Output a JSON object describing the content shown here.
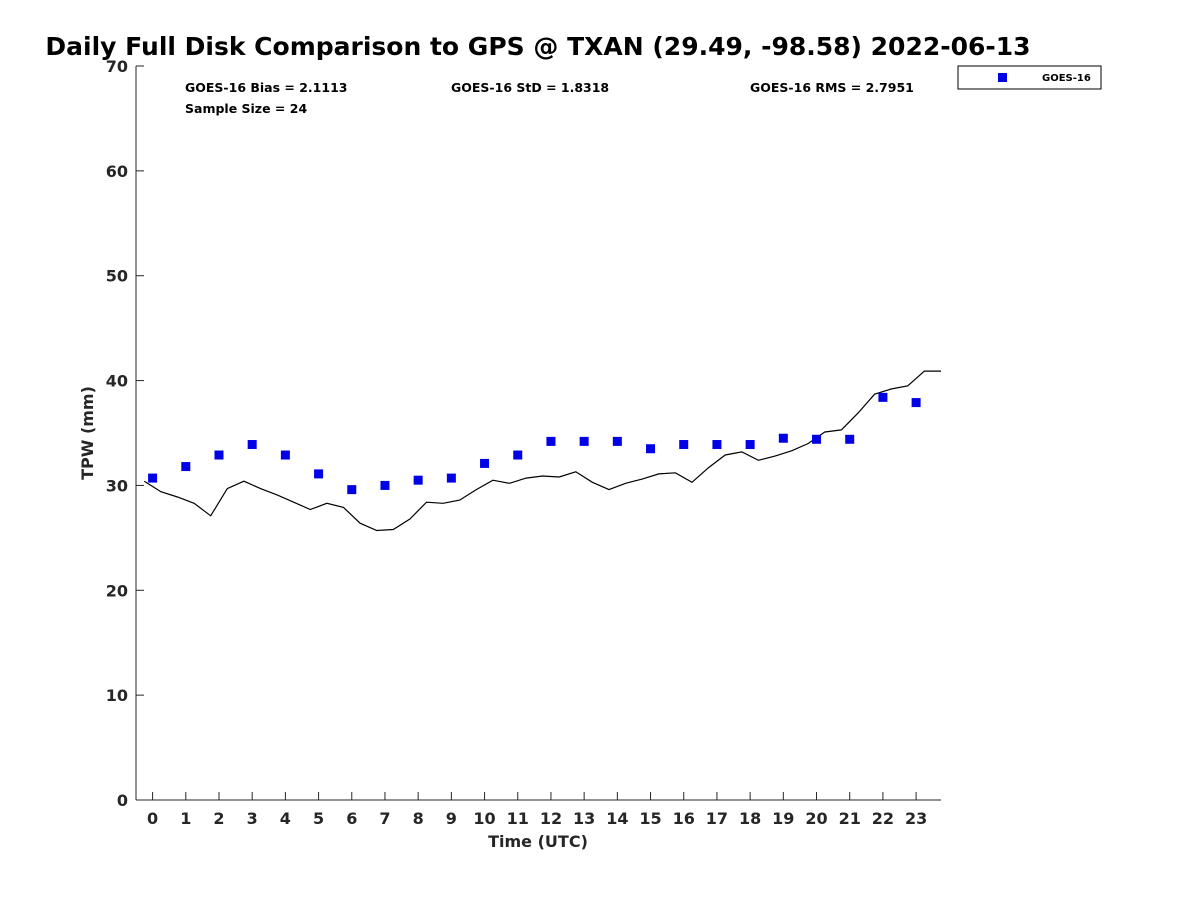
{
  "chart_data": {
    "type": "scatter",
    "title": "Daily Full Disk Comparison to GPS @ TXAN (29.49, -98.58) 2022-06-13",
    "xlabel": "Time (UTC)",
    "ylabel": "TPW (mm)",
    "xlim": [
      -0.5,
      23.75
    ],
    "ylim": [
      0,
      70
    ],
    "x_ticks": [
      0,
      1,
      2,
      3,
      4,
      5,
      6,
      7,
      8,
      9,
      10,
      11,
      12,
      13,
      14,
      15,
      16,
      17,
      18,
      19,
      20,
      21,
      22,
      23
    ],
    "x_tick_labels": [
      "0",
      "1",
      "2",
      "3",
      "4",
      "5",
      "6",
      "7",
      "8",
      "9",
      "10",
      "11",
      "12",
      "13",
      "14",
      "15",
      "16",
      "17",
      "18",
      "19",
      "20",
      "21",
      "22",
      "23"
    ],
    "y_ticks": [
      0,
      10,
      20,
      30,
      40,
      50,
      60,
      70
    ],
    "y_tick_labels": [
      "0",
      "10",
      "20",
      "30",
      "40",
      "50",
      "60",
      "70"
    ],
    "grid": false,
    "legend": {
      "placement": "outside-top-right",
      "entries": [
        "GOES-16"
      ]
    },
    "series": [
      {
        "name": "GOES-16",
        "kind": "markers",
        "marker": "square",
        "color": "#0000e6",
        "x": [
          0,
          1,
          2,
          3,
          4,
          5,
          6,
          7,
          8,
          9,
          10,
          11,
          12,
          13,
          14,
          15,
          16,
          17,
          18,
          19,
          20,
          21,
          22,
          23
        ],
        "y": [
          30.7,
          31.8,
          32.9,
          33.9,
          32.9,
          31.1,
          29.6,
          30.0,
          30.5,
          30.7,
          32.1,
          32.9,
          34.2,
          34.2,
          34.2,
          33.5,
          33.9,
          33.9,
          33.9,
          34.5,
          34.4,
          34.4,
          38.4,
          37.9
        ]
      },
      {
        "kind": "line",
        "color": "#000000",
        "x": [
          -0.25,
          0.25,
          0.75,
          1.25,
          1.75,
          2.25,
          2.75,
          3.25,
          3.75,
          4.25,
          4.75,
          5.25,
          5.75,
          6.25,
          6.75,
          7.25,
          7.75,
          8.25,
          8.75,
          9.25,
          9.75,
          10.25,
          10.75,
          11.25,
          11.75,
          12.25,
          12.75,
          13.25,
          13.75,
          14.25,
          14.75,
          15.25,
          15.75,
          16.25,
          16.75,
          17.25,
          17.75,
          18.25,
          18.75,
          19.25,
          19.75,
          20.25,
          20.75,
          21.25,
          21.75,
          22.25,
          22.75,
          23.25,
          23.75
        ],
        "y": [
          30.4,
          29.4,
          28.9,
          28.3,
          27.1,
          29.7,
          30.4,
          29.7,
          29.1,
          28.4,
          27.7,
          28.3,
          27.9,
          26.4,
          25.7,
          25.8,
          26.8,
          28.4,
          28.3,
          28.6,
          29.6,
          30.5,
          30.2,
          30.7,
          30.9,
          30.8,
          31.3,
          30.3,
          29.6,
          30.2,
          30.6,
          31.1,
          31.2,
          30.3,
          31.7,
          32.9,
          33.2,
          32.4,
          32.8,
          33.3,
          34.0,
          35.1,
          35.3,
          36.9,
          38.7,
          39.2,
          39.5,
          40.9,
          40.9
        ]
      }
    ]
  },
  "stats": {
    "bias": "GOES-16 Bias = 2.1113",
    "std": "GOES-16 StD = 1.8318",
    "rms": "GOES-16 RMS = 2.7951",
    "sample_size": "Sample Size = 24"
  }
}
